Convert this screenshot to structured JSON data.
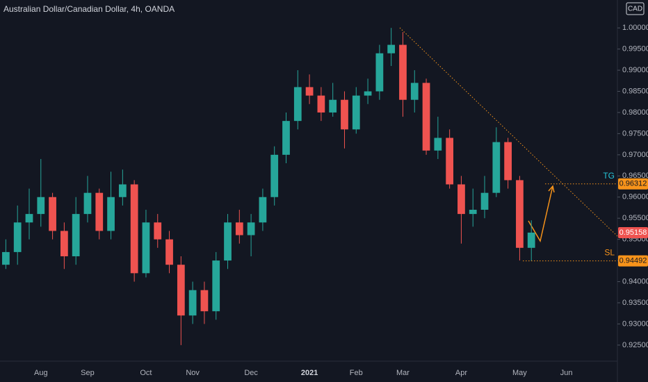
{
  "chart_data": {
    "type": "candlestick",
    "title": "Australian Dollar/Canadian Dollar, 4h, OANDA",
    "currency": "CAD",
    "categories": [
      null,
      null,
      null,
      "Aug",
      null,
      null,
      null,
      "Sep",
      null,
      null,
      null,
      null,
      "Oct",
      null,
      null,
      null,
      "Nov",
      null,
      null,
      null,
      null,
      "Dec",
      null,
      null,
      null,
      null,
      "2021",
      null,
      null,
      null,
      "Feb",
      null,
      null,
      null,
      "Mar",
      null,
      null,
      null,
      null,
      "Apr",
      null,
      null,
      null,
      null,
      "May",
      null,
      null,
      null,
      "Jun"
    ],
    "open": [
      0.944,
      0.947,
      0.954,
      0.956,
      0.96,
      0.952,
      0.946,
      0.956,
      0.961,
      0.952,
      0.96,
      0.963,
      0.942,
      0.954,
      0.95,
      0.944,
      0.932,
      0.938,
      0.933,
      0.945,
      0.954,
      0.951,
      0.954,
      0.96,
      0.97,
      0.978,
      0.986,
      0.984,
      0.98,
      0.983,
      0.976,
      0.984,
      0.985,
      0.994,
      0.996,
      0.983,
      0.987,
      0.971,
      0.974,
      0.963,
      0.956,
      0.957,
      0.961,
      0.973,
      0.964,
      0.948,
      null,
      null,
      null
    ],
    "high": [
      0.95,
      0.958,
      0.962,
      0.969,
      0.961,
      0.954,
      0.96,
      0.965,
      0.962,
      0.966,
      0.9665,
      0.964,
      0.957,
      0.956,
      0.952,
      0.946,
      0.94,
      0.94,
      0.947,
      0.956,
      0.957,
      0.956,
      0.962,
      0.972,
      0.98,
      0.99,
      0.989,
      0.986,
      0.987,
      0.985,
      0.986,
      0.988,
      0.996,
      1.0,
      0.999,
      0.99,
      0.988,
      0.979,
      0.976,
      0.965,
      0.962,
      0.965,
      0.9765,
      0.974,
      0.965,
      0.9545,
      null,
      null,
      null
    ],
    "low": [
      0.943,
      0.944,
      0.95,
      0.953,
      0.95,
      0.943,
      0.944,
      0.954,
      0.95,
      0.95,
      0.958,
      0.94,
      0.941,
      0.948,
      0.942,
      0.925,
      0.93,
      0.93,
      0.931,
      0.943,
      0.949,
      0.946,
      0.952,
      0.958,
      0.968,
      0.976,
      0.982,
      0.978,
      0.979,
      0.9715,
      0.975,
      0.982,
      0.983,
      0.991,
      0.979,
      0.98,
      0.97,
      0.969,
      0.962,
      0.949,
      0.953,
      0.955,
      0.96,
      0.962,
      0.945,
      0.9449,
      null,
      null,
      null
    ],
    "close": [
      0.947,
      0.954,
      0.956,
      0.96,
      0.952,
      0.946,
      0.956,
      0.961,
      0.952,
      0.96,
      0.963,
      0.942,
      0.954,
      0.95,
      0.944,
      0.932,
      0.938,
      0.933,
      0.945,
      0.954,
      0.951,
      0.954,
      0.96,
      0.97,
      0.978,
      0.986,
      0.984,
      0.98,
      0.983,
      0.976,
      0.984,
      0.985,
      0.994,
      0.996,
      0.983,
      0.987,
      0.971,
      0.974,
      0.963,
      0.956,
      0.957,
      0.961,
      0.973,
      0.964,
      0.948,
      0.9516,
      null,
      null,
      null
    ],
    "up_color": "#26a69a",
    "down_color": "#ef5350",
    "ylim": [
      0.9212,
      1.0066
    ],
    "yticks": [
      {
        "value": 0.925,
        "label": "0.92500"
      },
      {
        "value": 0.93,
        "label": "0.93000"
      },
      {
        "value": 0.935,
        "label": "0.93500"
      },
      {
        "value": 0.94,
        "label": "0.94000"
      },
      {
        "value": 0.945,
        "label": "0.94500"
      },
      {
        "value": 0.95,
        "label": "0.95000"
      },
      {
        "value": 0.955,
        "label": "0.95500"
      },
      {
        "value": 0.96,
        "label": "0.96000"
      },
      {
        "value": 0.965,
        "label": "0.96500"
      },
      {
        "value": 0.97,
        "label": "0.97000"
      },
      {
        "value": 0.975,
        "label": "0.97500"
      },
      {
        "value": 0.98,
        "label": "0.98000"
      },
      {
        "value": 0.985,
        "label": "0.98500"
      },
      {
        "value": 0.99,
        "label": "0.99000"
      },
      {
        "value": 0.995,
        "label": "0.99500"
      },
      {
        "value": 1.0,
        "label": "1.00000"
      }
    ],
    "grid": false,
    "levels": [
      {
        "name": "TG",
        "value": 0.96312,
        "color": "#f7931a"
      },
      {
        "name": "SL",
        "value": 0.94492,
        "color": "#f7931a"
      }
    ],
    "last_price": {
      "value": 0.95158,
      "color": "#ef5350"
    }
  }
}
